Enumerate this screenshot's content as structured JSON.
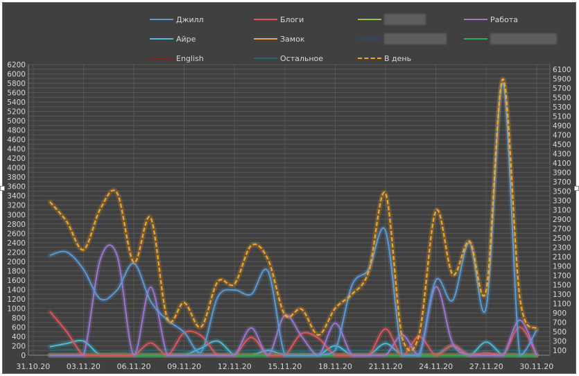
{
  "chart_data": {
    "type": "line",
    "title": "",
    "xlabel": "",
    "ylabel": "",
    "ylim": [
      0,
      6200
    ],
    "ytick_step": 100,
    "grid": true,
    "legend_position": "top",
    "x_tick_labels": [
      "31.10.20",
      "03.11.20",
      "06.11.20",
      "09.11.20",
      "12.11.20",
      "15.11.20",
      "18.11.20",
      "21.11.20",
      "24.11.20",
      "27.11.20",
      "30.11.20"
    ],
    "x": [
      "01.11.20",
      "02.11.20",
      "03.11.20",
      "04.11.20",
      "05.11.20",
      "06.11.20",
      "07.11.20",
      "08.11.20",
      "09.11.20",
      "10.11.20",
      "11.11.20",
      "12.11.20",
      "13.11.20",
      "14.11.20",
      "15.11.20",
      "16.11.20",
      "17.11.20",
      "18.11.20",
      "19.11.20",
      "20.11.20",
      "21.11.20",
      "22.11.20",
      "23.11.20",
      "24.11.20",
      "25.11.20",
      "26.11.20",
      "27.11.20",
      "28.11.20",
      "29.11.20",
      "30.11.20"
    ],
    "series": [
      {
        "name": "Джилл",
        "color": "#5b9bd5",
        "dashed": false,
        "values": [
          2130,
          2200,
          1830,
          1200,
          1390,
          1960,
          1150,
          750,
          490,
          60,
          1240,
          1390,
          1300,
          1790,
          0,
          0,
          0,
          100,
          1490,
          1830,
          2650,
          0,
          0,
          1600,
          1170,
          2400,
          1020,
          5800,
          0,
          530
        ]
      },
      {
        "name": "Блоги",
        "color": "#e0555a",
        "dashed": false,
        "values": [
          930,
          500,
          0,
          0,
          0,
          0,
          260,
          0,
          480,
          420,
          0,
          0,
          380,
          0,
          0,
          460,
          360,
          0,
          0,
          0,
          560,
          0,
          400,
          0,
          210,
          0,
          50,
          0,
          600,
          0
        ]
      },
      {
        "name": "",
        "color": "#9bc53d",
        "dashed": false,
        "values": [
          0,
          0,
          0,
          0,
          0,
          0,
          0,
          0,
          0,
          0,
          0,
          0,
          0,
          0,
          0,
          0,
          0,
          0,
          0,
          0,
          0,
          0,
          0,
          0,
          0,
          0,
          0,
          0,
          0,
          0
        ]
      },
      {
        "name": "Работа",
        "color": "#9a78d0",
        "dashed": false,
        "values": [
          0,
          0,
          0,
          2040,
          2130,
          0,
          1450,
          0,
          0,
          0,
          0,
          0,
          580,
          0,
          850,
          400,
          0,
          680,
          0,
          0,
          0,
          430,
          0,
          1460,
          250,
          0,
          0,
          0,
          750,
          0
        ]
      },
      {
        "name": "Айре",
        "color": "#4bbcd6",
        "dashed": false,
        "values": [
          180,
          250,
          300,
          0,
          0,
          0,
          0,
          0,
          0,
          150,
          300,
          0,
          0,
          100,
          0,
          0,
          0,
          200,
          0,
          0,
          250,
          0,
          0,
          0,
          200,
          0,
          280,
          0,
          0,
          0
        ]
      },
      {
        "name": "Замок",
        "color": "#f4a259",
        "dashed": false,
        "values": [
          0,
          0,
          0,
          0,
          0,
          0,
          0,
          0,
          0,
          0,
          0,
          0,
          0,
          0,
          0,
          0,
          0,
          0,
          0,
          0,
          0,
          0,
          0,
          0,
          0,
          0,
          0,
          0,
          0,
          0
        ]
      },
      {
        "name": "",
        "color": "#2a4a7c",
        "dashed": false,
        "values": [
          0,
          0,
          0,
          0,
          0,
          0,
          0,
          0,
          0,
          0,
          0,
          0,
          0,
          0,
          0,
          0,
          0,
          0,
          0,
          0,
          0,
          0,
          0,
          0,
          0,
          0,
          0,
          0,
          0,
          0
        ]
      },
      {
        "name": "",
        "color": "#22b14c",
        "dashed": false,
        "values": [
          0,
          0,
          0,
          0,
          0,
          0,
          0,
          0,
          0,
          0,
          0,
          0,
          0,
          0,
          0,
          0,
          0,
          0,
          0,
          0,
          0,
          0,
          0,
          0,
          0,
          0,
          0,
          0,
          0,
          0
        ]
      },
      {
        "name": "English",
        "color": "#8b1c1c",
        "dashed": false,
        "values": [
          30,
          30,
          20,
          20,
          30,
          30,
          20,
          30,
          30,
          20,
          30,
          30,
          20,
          30,
          30,
          20,
          30,
          30,
          20,
          30,
          30,
          20,
          30,
          30,
          20,
          30,
          30,
          20,
          30,
          30
        ]
      },
      {
        "name": "Остальное",
        "color": "#1f6a72",
        "dashed": false,
        "values": [
          100,
          120,
          100,
          50,
          60,
          80,
          100,
          120,
          90,
          100,
          110,
          80,
          100,
          120,
          90,
          80,
          100,
          120,
          100,
          90,
          110,
          100,
          80,
          100,
          120,
          90,
          100,
          110,
          90,
          80
        ]
      },
      {
        "name": "В день",
        "color": "#f5a623",
        "dashed": true,
        "values": [
          3270,
          2850,
          2250,
          3120,
          3460,
          1980,
          2930,
          780,
          1120,
          600,
          1570,
          1520,
          2340,
          2040,
          860,
          980,
          430,
          1000,
          1300,
          1790,
          3450,
          355,
          430,
          3080,
          1720,
          2430,
          1390,
          5890,
          1240,
          560
        ]
      }
    ]
  }
}
